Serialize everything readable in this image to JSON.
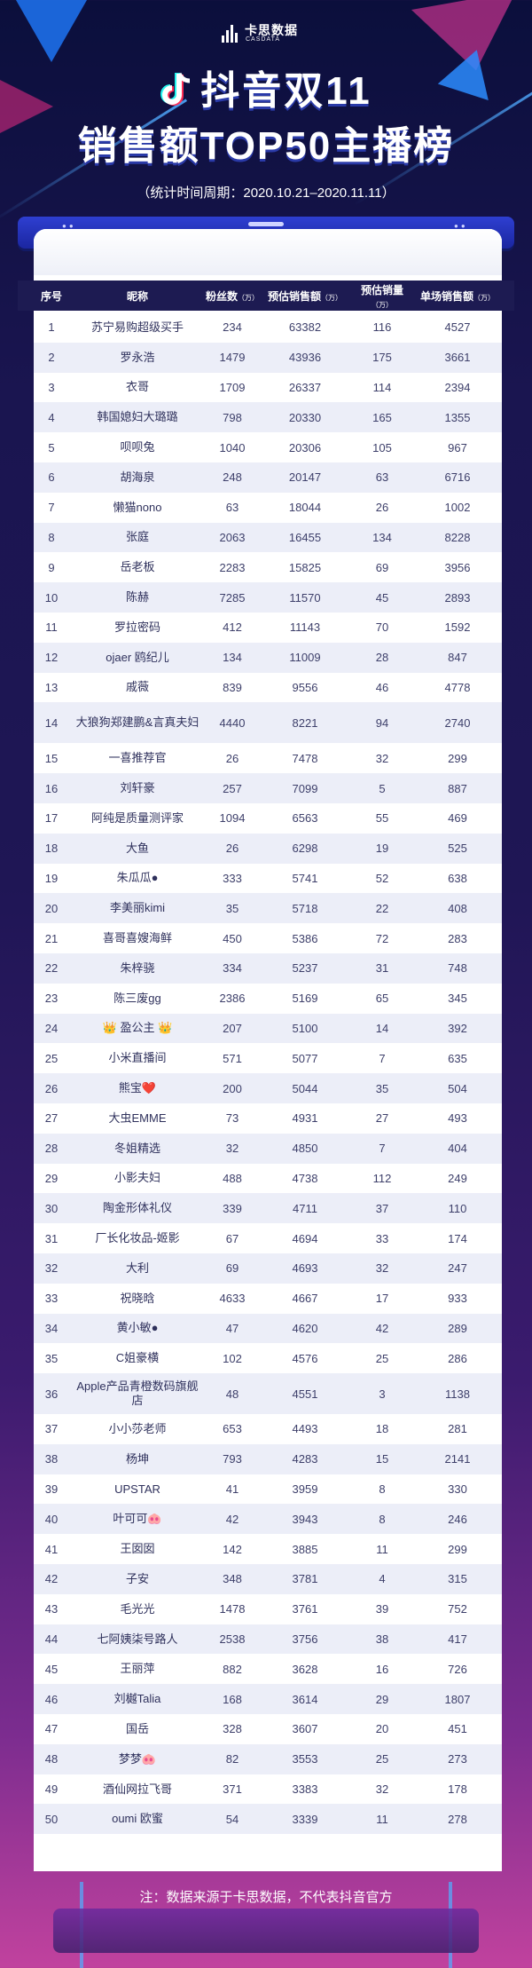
{
  "header": {
    "brand_name": "卡思数据",
    "brand_sub": "CASDATA",
    "title_line1": "抖音双11",
    "title_line2": "销售额TOP50主播榜",
    "period": "（统计时间周期：2020.10.21–2020.11.11）"
  },
  "footer": {
    "note": "注：数据来源于卡思数据，不代表抖音官方"
  },
  "colors": {
    "accent": "#2e3fd1",
    "row_alt": "#eceef8",
    "text": "#3d3f6a"
  },
  "chart_data": {
    "type": "table",
    "columns": [
      {
        "label": "序号",
        "unit": ""
      },
      {
        "label": "昵称",
        "unit": ""
      },
      {
        "label": "粉丝数",
        "unit": "（万）"
      },
      {
        "label": "预估销售额",
        "unit": "（万）"
      },
      {
        "label": "预估销量",
        "unit": "（万）"
      },
      {
        "label": "单场销售额",
        "unit": "（万）"
      }
    ],
    "rows": [
      [
        "1",
        "苏宁易购超级买手",
        "234",
        "63382",
        "116",
        "4527"
      ],
      [
        "2",
        "罗永浩",
        "1479",
        "43936",
        "175",
        "3661"
      ],
      [
        "3",
        "衣哥",
        "1709",
        "26337",
        "114",
        "2394"
      ],
      [
        "4",
        "韩国媳妇大璐璐",
        "798",
        "20330",
        "165",
        "1355"
      ],
      [
        "5",
        "呗呗兔",
        "1040",
        "20306",
        "105",
        "967"
      ],
      [
        "6",
        "胡海泉",
        "248",
        "20147",
        "63",
        "6716"
      ],
      [
        "7",
        "懒猫nono",
        "63",
        "18044",
        "26",
        "1002"
      ],
      [
        "8",
        "张庭",
        "2063",
        "16455",
        "134",
        "8228"
      ],
      [
        "9",
        "岳老板",
        "2283",
        "15825",
        "69",
        "3956"
      ],
      [
        "10",
        "陈赫",
        "7285",
        "11570",
        "45",
        "2893"
      ],
      [
        "11",
        "罗拉密码",
        "412",
        "11143",
        "70",
        "1592"
      ],
      [
        "12",
        "ojaer 鸥纪儿",
        "134",
        "11009",
        "28",
        "847"
      ],
      [
        "13",
        "戚薇",
        "839",
        "9556",
        "46",
        "4778"
      ],
      [
        "14",
        "大狼狗郑建鹏&言真夫妇",
        "4440",
        "8221",
        "94",
        "2740"
      ],
      [
        "15",
        "一喜推荐官",
        "26",
        "7478",
        "32",
        "299"
      ],
      [
        "16",
        "刘轩豪",
        "257",
        "7099",
        "5",
        "887"
      ],
      [
        "17",
        "阿纯是质量测评家",
        "1094",
        "6563",
        "55",
        "469"
      ],
      [
        "18",
        "大鱼",
        "26",
        "6298",
        "19",
        "525"
      ],
      [
        "19",
        "朱瓜瓜●",
        "333",
        "5741",
        "52",
        "638"
      ],
      [
        "20",
        "李美丽kimi",
        "35",
        "5718",
        "22",
        "408"
      ],
      [
        "21",
        "喜哥喜嫂海鲜",
        "450",
        "5386",
        "72",
        "283"
      ],
      [
        "22",
        "朱梓骁",
        "334",
        "5237",
        "31",
        "748"
      ],
      [
        "23",
        "陈三废gg",
        "2386",
        "5169",
        "65",
        "345"
      ],
      [
        "24",
        "👑 盈公主 👑",
        "207",
        "5100",
        "14",
        "392"
      ],
      [
        "25",
        "小米直播间",
        "571",
        "5077",
        "7",
        "635"
      ],
      [
        "26",
        "熊宝❤️",
        "200",
        "5044",
        "35",
        "504"
      ],
      [
        "27",
        "大虫EMME",
        "73",
        "4931",
        "27",
        "493"
      ],
      [
        "28",
        "冬姐精选",
        "32",
        "4850",
        "7",
        "404"
      ],
      [
        "29",
        "小影夫妇",
        "488",
        "4738",
        "112",
        "249"
      ],
      [
        "30",
        "陶金形体礼仪",
        "339",
        "4711",
        "37",
        "110"
      ],
      [
        "31",
        "厂长化妆品-姬影",
        "67",
        "4694",
        "33",
        "174"
      ],
      [
        "32",
        "大利",
        "69",
        "4693",
        "32",
        "247"
      ],
      [
        "33",
        "祝晓晗",
        "4633",
        "4667",
        "17",
        "933"
      ],
      [
        "34",
        "黄小敏●",
        "47",
        "4620",
        "42",
        "289"
      ],
      [
        "35",
        "C姐豪横",
        "102",
        "4576",
        "25",
        "286"
      ],
      [
        "36",
        "Apple产品青橙数码旗舰店",
        "48",
        "4551",
        "3",
        "1138"
      ],
      [
        "37",
        "小小莎老师",
        "653",
        "4493",
        "18",
        "281"
      ],
      [
        "38",
        "杨坤",
        "793",
        "4283",
        "15",
        "2141"
      ],
      [
        "39",
        "UPSTAR",
        "41",
        "3959",
        "8",
        "330"
      ],
      [
        "40",
        "叶可可🐽",
        "42",
        "3943",
        "8",
        "246"
      ],
      [
        "41",
        "王囡囡",
        "142",
        "3885",
        "11",
        "299"
      ],
      [
        "42",
        "子安",
        "348",
        "3781",
        "4",
        "315"
      ],
      [
        "43",
        "毛光光",
        "1478",
        "3761",
        "39",
        "752"
      ],
      [
        "44",
        "七阿姨柒号路人",
        "2538",
        "3756",
        "38",
        "417"
      ],
      [
        "45",
        "王丽萍",
        "882",
        "3628",
        "16",
        "726"
      ],
      [
        "46",
        "刘樾Talia",
        "168",
        "3614",
        "29",
        "1807"
      ],
      [
        "47",
        "国岳",
        "328",
        "3607",
        "20",
        "451"
      ],
      [
        "48",
        "梦梦🐽",
        "82",
        "3553",
        "25",
        "273"
      ],
      [
        "49",
        "酒仙网拉飞哥",
        "371",
        "3383",
        "32",
        "178"
      ],
      [
        "50",
        "oumi 欧蜜",
        "54",
        "3339",
        "11",
        "278"
      ]
    ]
  }
}
